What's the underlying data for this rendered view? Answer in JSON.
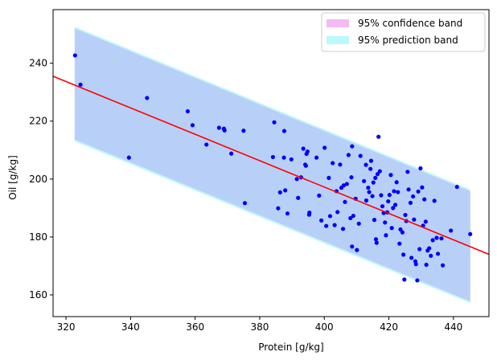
{
  "chart_data": {
    "type": "scatter",
    "title": "",
    "xlabel": "Protein [g/kg]",
    "ylabel": "Oil [g/kg]",
    "xlim": [
      316,
      451
    ],
    "ylim": [
      152.5,
      258.5
    ],
    "xticks": [
      320,
      340,
      360,
      380,
      400,
      420,
      440
    ],
    "yticks": [
      160,
      180,
      200,
      220,
      240
    ],
    "grid": false,
    "legend_position": "top-right",
    "legend": [
      {
        "label": "95% confidence band",
        "color": "#f2bbf2"
      },
      {
        "label": "95% prediction band",
        "color": "#bbf7fb"
      }
    ],
    "regression_line": {
      "x": [
        316,
        451
      ],
      "y": [
        235.5,
        174.0
      ],
      "color": "#ff0000"
    },
    "confidence_band": {
      "x": [
        322.7,
        445.2
      ],
      "upper": [
        252.0,
        195.8
      ],
      "lower": [
        213.7,
        157.8
      ],
      "color": "#f2bbf2"
    },
    "prediction_band": {
      "x": [
        322.7,
        445.2
      ],
      "upper": [
        252.6,
        196.4
      ],
      "lower": [
        213.0,
        157.2
      ],
      "color": "#bbf7fb"
    },
    "band_fill_color": "#b8d0f8",
    "points_color": "#0000ff",
    "points": [
      [
        322.8,
        242.7
      ],
      [
        324.5,
        232.6
      ],
      [
        339.5,
        207.4
      ],
      [
        345.1,
        228.0
      ],
      [
        357.7,
        223.4
      ],
      [
        359.2,
        218.6
      ],
      [
        363.5,
        211.9
      ],
      [
        367.4,
        217.7
      ],
      [
        368.9,
        217.4
      ],
      [
        369.1,
        216.8
      ],
      [
        371.2,
        208.8
      ],
      [
        375.0,
        216.7
      ],
      [
        375.4,
        191.7
      ],
      [
        384.5,
        219.6
      ],
      [
        384.1,
        207.6
      ],
      [
        385.7,
        189.9
      ],
      [
        386.3,
        195.4
      ],
      [
        387.6,
        216.6
      ],
      [
        387.5,
        207.4
      ],
      [
        387.9,
        196.1
      ],
      [
        388.6,
        188.1
      ],
      [
        389.8,
        206.8
      ],
      [
        391.5,
        200.0
      ],
      [
        391.9,
        193.5
      ],
      [
        392.8,
        200.6
      ],
      [
        393.5,
        210.5
      ],
      [
        394.1,
        205.0
      ],
      [
        394.3,
        204.6
      ],
      [
        394.5,
        208.7
      ],
      [
        394.8,
        209.5
      ],
      [
        395.3,
        187.7
      ],
      [
        395.4,
        188.4
      ],
      [
        397.6,
        207.4
      ],
      [
        398.4,
        194.3
      ],
      [
        399.1,
        185.7
      ],
      [
        400.1,
        210.8
      ],
      [
        400.6,
        183.8
      ],
      [
        401.4,
        200.4
      ],
      [
        401.8,
        187.2
      ],
      [
        402.6,
        205.5
      ],
      [
        403.2,
        184.1
      ],
      [
        403.8,
        195.8
      ],
      [
        404.1,
        188.6
      ],
      [
        404.9,
        205.0
      ],
      [
        405.3,
        197.0
      ],
      [
        405.8,
        182.8
      ],
      [
        406.0,
        197.8
      ],
      [
        406.4,
        192.1
      ],
      [
        407.0,
        198.3
      ],
      [
        407.5,
        208.3
      ],
      [
        408.1,
        186.5
      ],
      [
        408.4,
        200.6
      ],
      [
        408.6,
        211.3
      ],
      [
        408.6,
        176.7
      ],
      [
        409.0,
        187.3
      ],
      [
        409.7,
        193.2
      ],
      [
        410.1,
        175.5
      ],
      [
        410.7,
        184.6
      ],
      [
        411.2,
        208.0
      ],
      [
        412.3,
        199.3
      ],
      [
        412.9,
        204.9
      ],
      [
        413.0,
        192.6
      ],
      [
        413.6,
        197.0
      ],
      [
        413.9,
        195.5
      ],
      [
        414.3,
        203.5
      ],
      [
        414.5,
        206.3
      ],
      [
        414.9,
        194.1
      ],
      [
        415.2,
        198.8
      ],
      [
        415.5,
        185.9
      ],
      [
        415.8,
        200.4
      ],
      [
        416.0,
        179.2
      ],
      [
        416.2,
        178.0
      ],
      [
        416.5,
        201.7
      ],
      [
        416.8,
        214.6
      ],
      [
        417.2,
        202.7
      ],
      [
        417.6,
        194.4
      ],
      [
        418.0,
        190.6
      ],
      [
        418.4,
        188.3
      ],
      [
        418.8,
        185.0
      ],
      [
        419.1,
        180.6
      ],
      [
        419.5,
        188.5
      ],
      [
        419.8,
        192.3
      ],
      [
        420.2,
        194.5
      ],
      [
        420.6,
        201.4
      ],
      [
        420.9,
        183.1
      ],
      [
        421.3,
        190.0
      ],
      [
        421.6,
        195.8
      ],
      [
        422.0,
        191.1
      ],
      [
        422.4,
        198.9
      ],
      [
        422.8,
        195.5
      ],
      [
        423.3,
        177.7
      ],
      [
        423.6,
        182.6
      ],
      [
        424.2,
        181.6
      ],
      [
        424.5,
        173.9
      ],
      [
        424.8,
        165.3
      ],
      [
        425.1,
        187.6
      ],
      [
        425.4,
        185.5
      ],
      [
        425.8,
        202.5
      ],
      [
        426.1,
        196.4
      ],
      [
        426.7,
        191.8
      ],
      [
        427.0,
        172.8
      ],
      [
        427.5,
        194.0
      ],
      [
        427.8,
        186.0
      ],
      [
        428.2,
        171.6
      ],
      [
        428.4,
        170.6
      ],
      [
        428.8,
        165.0
      ],
      [
        429.1,
        195.7
      ],
      [
        429.5,
        175.8
      ],
      [
        429.8,
        203.7
      ],
      [
        430.3,
        197.1
      ],
      [
        430.6,
        183.9
      ],
      [
        431.0,
        193.0
      ],
      [
        431.4,
        185.3
      ],
      [
        431.6,
        170.4
      ],
      [
        432.0,
        175.3
      ],
      [
        432.5,
        176.1
      ],
      [
        433.0,
        173.5
      ],
      [
        433.6,
        178.9
      ],
      [
        434.1,
        192.5
      ],
      [
        434.8,
        179.7
      ],
      [
        435.2,
        174.2
      ],
      [
        436.3,
        179.5
      ],
      [
        436.7,
        170.2
      ],
      [
        439.2,
        182.2
      ],
      [
        441.1,
        197.3
      ],
      [
        445.2,
        181.0
      ]
    ]
  }
}
